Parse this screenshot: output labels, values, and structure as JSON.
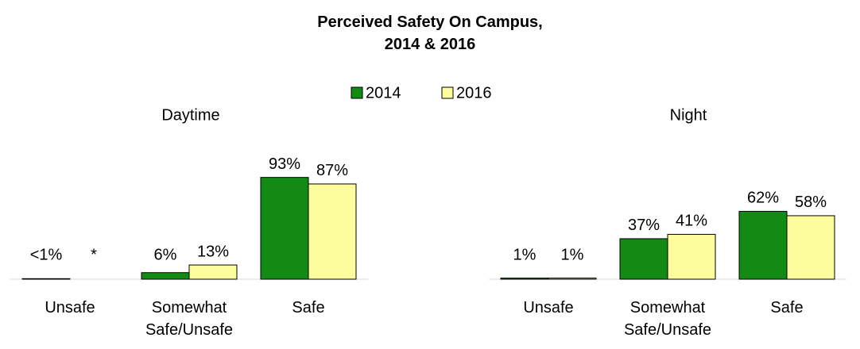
{
  "title": "Perceived Safety On Campus, 2014 & 2016",
  "chart_data": [
    {
      "type": "bar",
      "title": "Daytime",
      "categories": [
        "Unsafe",
        "Somewhat Safe/Unsafe",
        "Safe"
      ],
      "series": [
        {
          "name": "2014",
          "color": "#138a13",
          "values": [
            0.5,
            6,
            93
          ],
          "value_labels": [
            "<1%",
            "6%",
            "93%"
          ]
        },
        {
          "name": "2016",
          "color": "#fdfd9d",
          "values": [
            null,
            13,
            87
          ],
          "value_labels": [
            "*",
            "13%",
            "87%"
          ]
        }
      ],
      "ylim": [
        0,
        100
      ]
    },
    {
      "type": "bar",
      "title": "Night",
      "categories": [
        "Unsafe",
        "Somewhat Safe/Unsafe",
        "Safe"
      ],
      "series": [
        {
          "name": "2014",
          "color": "#138a13",
          "values": [
            1,
            37,
            62
          ],
          "value_labels": [
            "1%",
            "37%",
            "62%"
          ]
        },
        {
          "name": "2016",
          "color": "#fdfd9d",
          "values": [
            1,
            41,
            58
          ],
          "value_labels": [
            "1%",
            "41%",
            "58%"
          ]
        }
      ],
      "ylim": [
        0,
        100
      ]
    }
  ]
}
